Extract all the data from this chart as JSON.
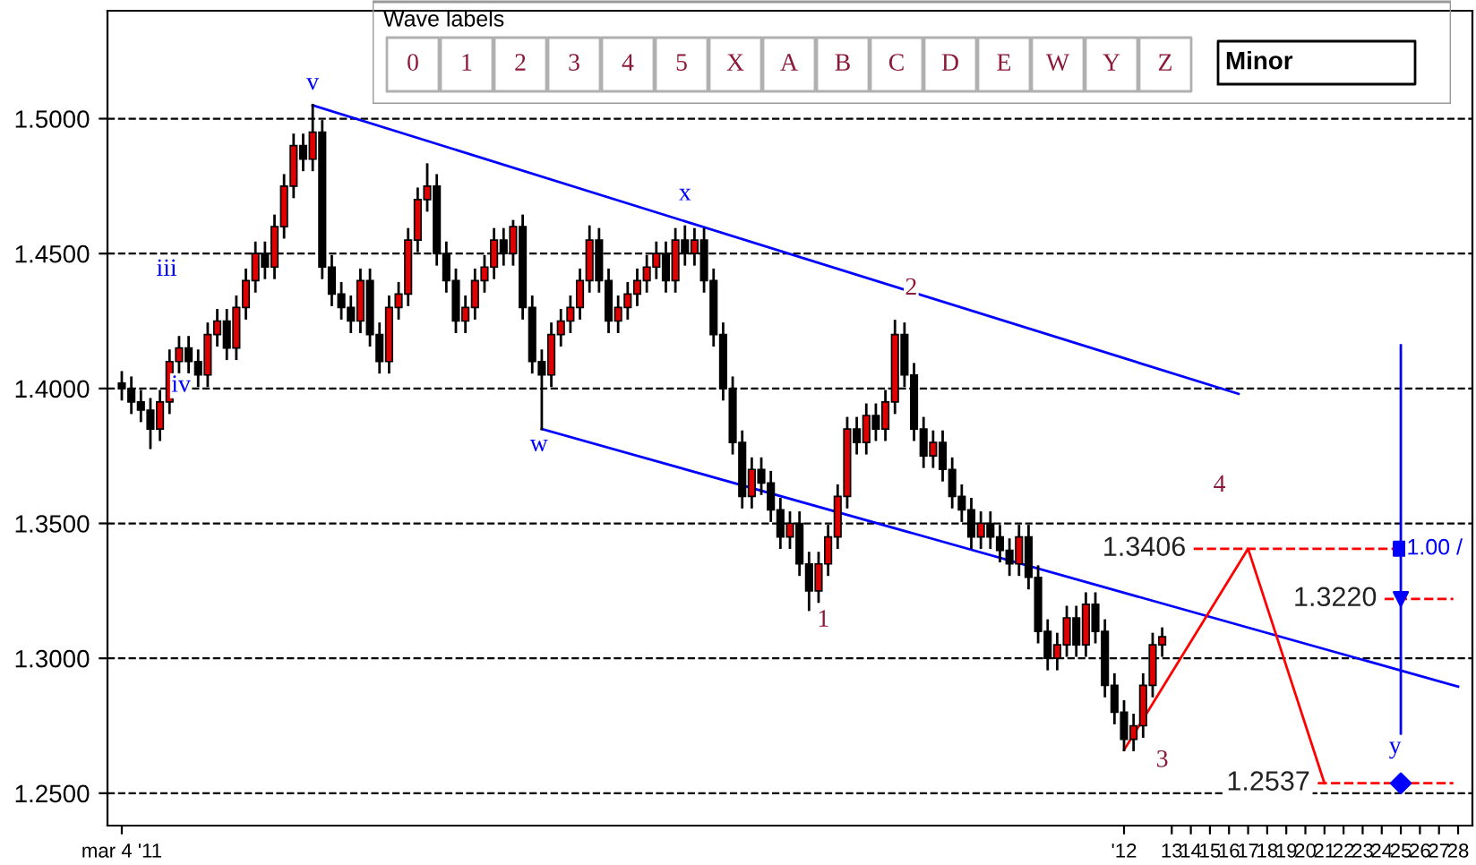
{
  "chart_data": {
    "type": "candlestick",
    "categories": [
      "mar 4 '11",
      null,
      null,
      null,
      null,
      null,
      null,
      null,
      null,
      null,
      null,
      null,
      null,
      null,
      null,
      null,
      null,
      null,
      null,
      null,
      null,
      null,
      null,
      null,
      null,
      null,
      null,
      null,
      null,
      null,
      null,
      null,
      null,
      null,
      null,
      null,
      null,
      null,
      null,
      null,
      null,
      null,
      null,
      null,
      null,
      null,
      null,
      null,
      null,
      null,
      null,
      null,
      null,
      null,
      null,
      null,
      null,
      null,
      null,
      null,
      null,
      null,
      null,
      null,
      null,
      null,
      null,
      null,
      null,
      null,
      null,
      null,
      null,
      null,
      null,
      null,
      null,
      null,
      null,
      null,
      null,
      null,
      null,
      null,
      null,
      null,
      null,
      null,
      null,
      null,
      null,
      null,
      null,
      null,
      null,
      null,
      null,
      null,
      null,
      null,
      null,
      null,
      null,
      null,
      null,
      "'12",
      null,
      null,
      null,
      null,
      "13",
      null,
      "14",
      null,
      "15",
      null,
      "16",
      null,
      "17",
      null,
      "18",
      null,
      "19",
      null,
      "20",
      null,
      "21",
      null,
      "22",
      null,
      "23",
      null,
      "24",
      null,
      "25",
      null,
      "26",
      null,
      "27",
      null,
      "28"
    ],
    "ohlc": [
      [
        1.402,
        1.406,
        1.396,
        1.4
      ],
      [
        1.4,
        1.404,
        1.391,
        1.395
      ],
      [
        1.395,
        1.399,
        1.388,
        1.392
      ],
      [
        1.392,
        1.396,
        1.378,
        1.385
      ],
      [
        1.385,
        1.399,
        1.381,
        1.395
      ],
      [
        1.395,
        1.414,
        1.391,
        1.41
      ],
      [
        1.41,
        1.419,
        1.406,
        1.415
      ],
      [
        1.415,
        1.419,
        1.406,
        1.41
      ],
      [
        1.41,
        1.414,
        1.401,
        1.405
      ],
      [
        1.405,
        1.424,
        1.401,
        1.42
      ],
      [
        1.42,
        1.429,
        1.416,
        1.425
      ],
      [
        1.425,
        1.429,
        1.411,
        1.415
      ],
      [
        1.415,
        1.434,
        1.411,
        1.43
      ],
      [
        1.43,
        1.444,
        1.426,
        1.44
      ],
      [
        1.44,
        1.454,
        1.436,
        1.45
      ],
      [
        1.45,
        1.454,
        1.441,
        1.445
      ],
      [
        1.445,
        1.464,
        1.441,
        1.46
      ],
      [
        1.46,
        1.479,
        1.456,
        1.475
      ],
      [
        1.475,
        1.494,
        1.471,
        1.49
      ],
      [
        1.49,
        1.494,
        1.481,
        1.485
      ],
      [
        1.485,
        1.505,
        1.481,
        1.495
      ],
      [
        1.495,
        1.499,
        1.441,
        1.445
      ],
      [
        1.445,
        1.449,
        1.431,
        1.435
      ],
      [
        1.435,
        1.439,
        1.426,
        1.43
      ],
      [
        1.43,
        1.434,
        1.421,
        1.425
      ],
      [
        1.425,
        1.444,
        1.421,
        1.44
      ],
      [
        1.44,
        1.444,
        1.416,
        1.42
      ],
      [
        1.42,
        1.424,
        1.406,
        1.41
      ],
      [
        1.41,
        1.434,
        1.406,
        1.43
      ],
      [
        1.43,
        1.439,
        1.426,
        1.435
      ],
      [
        1.435,
        1.459,
        1.431,
        1.455
      ],
      [
        1.455,
        1.474,
        1.451,
        1.47
      ],
      [
        1.47,
        1.483,
        1.466,
        1.475
      ],
      [
        1.475,
        1.479,
        1.446,
        1.45
      ],
      [
        1.45,
        1.454,
        1.436,
        1.44
      ],
      [
        1.44,
        1.444,
        1.421,
        1.425
      ],
      [
        1.425,
        1.434,
        1.421,
        1.43
      ],
      [
        1.43,
        1.444,
        1.426,
        1.44
      ],
      [
        1.44,
        1.449,
        1.436,
        1.445
      ],
      [
        1.445,
        1.459,
        1.441,
        1.455
      ],
      [
        1.455,
        1.459,
        1.446,
        1.45
      ],
      [
        1.45,
        1.462,
        1.446,
        1.46
      ],
      [
        1.46,
        1.464,
        1.426,
        1.43
      ],
      [
        1.43,
        1.434,
        1.406,
        1.41
      ],
      [
        1.41,
        1.414,
        1.385,
        1.405
      ],
      [
        1.405,
        1.424,
        1.401,
        1.42
      ],
      [
        1.42,
        1.429,
        1.416,
        1.425
      ],
      [
        1.425,
        1.434,
        1.421,
        1.43
      ],
      [
        1.43,
        1.444,
        1.426,
        1.44
      ],
      [
        1.44,
        1.46,
        1.436,
        1.455
      ],
      [
        1.455,
        1.459,
        1.436,
        1.44
      ],
      [
        1.44,
        1.444,
        1.421,
        1.425
      ],
      [
        1.425,
        1.434,
        1.421,
        1.43
      ],
      [
        1.43,
        1.439,
        1.426,
        1.435
      ],
      [
        1.435,
        1.444,
        1.431,
        1.44
      ],
      [
        1.44,
        1.449,
        1.436,
        1.445
      ],
      [
        1.445,
        1.454,
        1.441,
        1.45
      ],
      [
        1.45,
        1.454,
        1.436,
        1.44
      ],
      [
        1.44,
        1.459,
        1.436,
        1.455
      ],
      [
        1.455,
        1.46,
        1.446,
        1.45
      ],
      [
        1.45,
        1.459,
        1.446,
        1.455
      ],
      [
        1.455,
        1.459,
        1.436,
        1.44
      ],
      [
        1.44,
        1.444,
        1.416,
        1.42
      ],
      [
        1.42,
        1.424,
        1.396,
        1.4
      ],
      [
        1.4,
        1.404,
        1.376,
        1.38
      ],
      [
        1.38,
        1.384,
        1.356,
        1.36
      ],
      [
        1.36,
        1.374,
        1.356,
        1.37
      ],
      [
        1.37,
        1.374,
        1.361,
        1.365
      ],
      [
        1.365,
        1.369,
        1.351,
        1.355
      ],
      [
        1.355,
        1.359,
        1.341,
        1.345
      ],
      [
        1.345,
        1.354,
        1.341,
        1.35
      ],
      [
        1.35,
        1.354,
        1.331,
        1.335
      ],
      [
        1.335,
        1.339,
        1.318,
        1.325
      ],
      [
        1.325,
        1.339,
        1.321,
        1.335
      ],
      [
        1.335,
        1.349,
        1.331,
        1.345
      ],
      [
        1.345,
        1.364,
        1.341,
        1.36
      ],
      [
        1.36,
        1.389,
        1.356,
        1.385
      ],
      [
        1.385,
        1.389,
        1.376,
        1.38
      ],
      [
        1.38,
        1.394,
        1.376,
        1.39
      ],
      [
        1.39,
        1.394,
        1.381,
        1.385
      ],
      [
        1.385,
        1.399,
        1.381,
        1.395
      ],
      [
        1.395,
        1.425,
        1.391,
        1.42
      ],
      [
        1.42,
        1.424,
        1.401,
        1.405
      ],
      [
        1.405,
        1.409,
        1.381,
        1.385
      ],
      [
        1.385,
        1.389,
        1.371,
        1.375
      ],
      [
        1.375,
        1.384,
        1.371,
        1.38
      ],
      [
        1.38,
        1.384,
        1.366,
        1.37
      ],
      [
        1.37,
        1.374,
        1.356,
        1.36
      ],
      [
        1.36,
        1.364,
        1.351,
        1.355
      ],
      [
        1.355,
        1.359,
        1.341,
        1.345
      ],
      [
        1.345,
        1.354,
        1.341,
        1.35
      ],
      [
        1.35,
        1.354,
        1.341,
        1.345
      ],
      [
        1.345,
        1.349,
        1.336,
        1.34
      ],
      [
        1.34,
        1.344,
        1.331,
        1.335
      ],
      [
        1.335,
        1.349,
        1.331,
        1.345
      ],
      [
        1.345,
        1.349,
        1.326,
        1.33
      ],
      [
        1.33,
        1.334,
        1.306,
        1.31
      ],
      [
        1.31,
        1.314,
        1.296,
        1.3
      ],
      [
        1.3,
        1.309,
        1.296,
        1.305
      ],
      [
        1.305,
        1.319,
        1.301,
        1.315
      ],
      [
        1.315,
        1.319,
        1.301,
        1.305
      ],
      [
        1.305,
        1.324,
        1.301,
        1.32
      ],
      [
        1.32,
        1.324,
        1.306,
        1.31
      ],
      [
        1.31,
        1.314,
        1.286,
        1.29
      ],
      [
        1.29,
        1.294,
        1.276,
        1.28
      ],
      [
        1.28,
        1.284,
        1.266,
        1.27
      ],
      [
        1.27,
        1.279,
        1.266,
        1.275
      ],
      [
        1.275,
        1.294,
        1.271,
        1.29
      ],
      [
        1.29,
        1.309,
        1.286,
        1.305
      ],
      [
        1.305,
        1.311,
        1.301,
        1.308
      ],
      null,
      null,
      null,
      null,
      null,
      null,
      null,
      null,
      null,
      null,
      null,
      null,
      null,
      null,
      null,
      null,
      null,
      null,
      null,
      null,
      null,
      null,
      null,
      null,
      null,
      null,
      null,
      null,
      null,
      null,
      null
    ],
    "colors": [
      "#000000",
      "#000000",
      "#000000",
      "#000000",
      "#e00000",
      "#e00000",
      "#e00000",
      "#000000",
      "#000000",
      "#e00000",
      "#e00000",
      "#000000",
      "#e00000",
      "#e00000",
      "#e00000",
      "#000000",
      "#e00000",
      "#e00000",
      "#e00000",
      "#000000",
      "#e00000",
      "#000000",
      "#000000",
      "#000000",
      "#000000",
      "#e00000",
      "#000000",
      "#000000",
      "#e00000",
      "#e00000",
      "#e00000",
      "#e00000",
      "#e00000",
      "#000000",
      "#000000",
      "#000000",
      "#e00000",
      "#e00000",
      "#e00000",
      "#e00000",
      "#000000",
      "#e00000",
      "#000000",
      "#000000",
      "#000000",
      "#e00000",
      "#e00000",
      "#e00000",
      "#e00000",
      "#e00000",
      "#000000",
      "#000000",
      "#e00000",
      "#e00000",
      "#e00000",
      "#e00000",
      "#e00000",
      "#000000",
      "#e00000",
      "#000000",
      "#e00000",
      "#000000",
      "#000000",
      "#000000",
      "#000000",
      "#000000",
      "#e00000",
      "#000000",
      "#000000",
      "#000000",
      "#e00000",
      "#000000",
      "#000000",
      "#e00000",
      "#e00000",
      "#e00000",
      "#e00000",
      "#000000",
      "#e00000",
      "#000000",
      "#e00000",
      "#e00000",
      "#000000",
      "#000000",
      "#000000",
      "#e00000",
      "#000000",
      "#000000",
      "#000000",
      "#000000",
      "#e00000",
      "#000000",
      "#000000",
      "#000000",
      "#e00000",
      "#000000",
      "#000000",
      "#000000",
      "#e00000",
      "#e00000",
      "#000000",
      "#e00000",
      "#000000",
      "#000000",
      "#000000",
      "#000000",
      "#e00000",
      "#e00000",
      "#e00000",
      "#e00000",
      null,
      null,
      null,
      null,
      null,
      null,
      null,
      null,
      null,
      null,
      null,
      null,
      null,
      null,
      null,
      null,
      null,
      null,
      null,
      null,
      null,
      null,
      null,
      null,
      null,
      null,
      null,
      null,
      null,
      null,
      null
    ],
    "series": [
      {
        "type": "line",
        "color": "#0000ff",
        "values": [
          null,
          null,
          null,
          null,
          null,
          null,
          null,
          null,
          null,
          null,
          null,
          null,
          null,
          null,
          null,
          null,
          null,
          null,
          null,
          null,
          1.505,
          null,
          null,
          null,
          null,
          null,
          null,
          null,
          null,
          null,
          null,
          null,
          null,
          null,
          null,
          null,
          null,
          null,
          null,
          null,
          null,
          null,
          null,
          null,
          null,
          null,
          null,
          null,
          null,
          null,
          null,
          null,
          null,
          null,
          null,
          null,
          null,
          null,
          null,
          null,
          null,
          null,
          null,
          null,
          null,
          null,
          null,
          null,
          null,
          null,
          null,
          null,
          null,
          null,
          null,
          null,
          null,
          null,
          null,
          null,
          null,
          null,
          null,
          null,
          null,
          null,
          null,
          null,
          null,
          null,
          null,
          null,
          null,
          null,
          null,
          null,
          null,
          null,
          null,
          null,
          null,
          null,
          null,
          null,
          null,
          null,
          null,
          null,
          null,
          null,
          null,
          null,
          null,
          null,
          null,
          null,
          null,
          1.398,
          null,
          null,
          null,
          null,
          null,
          null,
          null,
          null,
          null,
          null,
          null,
          null,
          null,
          null,
          null,
          null,
          null,
          null,
          null,
          null,
          null,
          null,
          null
        ]
      },
      {
        "type": "line",
        "color": "#0000ff",
        "values": [
          null,
          null,
          null,
          null,
          null,
          null,
          null,
          null,
          null,
          null,
          null,
          null,
          null,
          null,
          null,
          null,
          null,
          null,
          null,
          null,
          null,
          null,
          null,
          null,
          null,
          null,
          null,
          null,
          null,
          null,
          null,
          null,
          null,
          null,
          null,
          null,
          null,
          null,
          null,
          null,
          null,
          null,
          null,
          null,
          1.385,
          null,
          null,
          null,
          null,
          null,
          null,
          null,
          null,
          null,
          null,
          null,
          null,
          null,
          null,
          null,
          null,
          null,
          null,
          null,
          null,
          null,
          null,
          null,
          null,
          null,
          null,
          null,
          null,
          null,
          null,
          null,
          null,
          null,
          null,
          null,
          null,
          null,
          null,
          null,
          null,
          null,
          null,
          null,
          null,
          null,
          null,
          null,
          null,
          null,
          null,
          null,
          null,
          null,
          null,
          null,
          null,
          null,
          null,
          null,
          null,
          null,
          null,
          null,
          null,
          null,
          null,
          null,
          null,
          null,
          null,
          null,
          null,
          null,
          null,
          null,
          null,
          null,
          null,
          null,
          null,
          null,
          null,
          null,
          null,
          null,
          null,
          null,
          null,
          null,
          null,
          null,
          null,
          null,
          null,
          null,
          1.2895
        ]
      },
      {
        "type": "line",
        "color": "#ff0000",
        "values": [
          null,
          null,
          null,
          null,
          null,
          null,
          null,
          null,
          null,
          null,
          null,
          null,
          null,
          null,
          null,
          null,
          null,
          null,
          null,
          null,
          null,
          null,
          null,
          null,
          null,
          null,
          null,
          null,
          null,
          null,
          null,
          null,
          null,
          null,
          null,
          null,
          null,
          null,
          null,
          null,
          null,
          null,
          null,
          null,
          null,
          null,
          null,
          null,
          null,
          null,
          null,
          null,
          null,
          null,
          null,
          null,
          null,
          null,
          null,
          null,
          null,
          null,
          null,
          null,
          null,
          null,
          null,
          null,
          null,
          null,
          null,
          null,
          null,
          null,
          null,
          null,
          null,
          null,
          null,
          null,
          null,
          null,
          null,
          null,
          null,
          null,
          null,
          null,
          null,
          null,
          null,
          null,
          null,
          null,
          null,
          null,
          null,
          null,
          null,
          null,
          null,
          null,
          null,
          null,
          null,
          1.266,
          null,
          null,
          null,
          null,
          null,
          null,
          null,
          null,
          null,
          null,
          null,
          null,
          1.3406,
          null,
          null,
          null,
          null,
          null,
          null,
          null,
          1.2537,
          null,
          null,
          null,
          null,
          null,
          null,
          null,
          null,
          null,
          null,
          null,
          null,
          null,
          null
        ]
      },
      {
        "type": "scatter",
        "color": "#0000ff",
        "marker": "square",
        "values": [
          null,
          null,
          null,
          null,
          null,
          null,
          null,
          null,
          null,
          null,
          null,
          null,
          null,
          null,
          null,
          null,
          null,
          null,
          null,
          null,
          null,
          null,
          null,
          null,
          null,
          null,
          null,
          null,
          null,
          null,
          null,
          null,
          null,
          null,
          null,
          null,
          null,
          null,
          null,
          null,
          null,
          null,
          null,
          null,
          null,
          null,
          null,
          null,
          null,
          null,
          null,
          null,
          null,
          null,
          null,
          null,
          null,
          null,
          null,
          null,
          null,
          null,
          null,
          null,
          null,
          null,
          null,
          null,
          null,
          null,
          null,
          null,
          null,
          null,
          null,
          null,
          null,
          null,
          null,
          null,
          null,
          null,
          null,
          null,
          null,
          null,
          null,
          null,
          null,
          null,
          null,
          null,
          null,
          null,
          null,
          null,
          null,
          null,
          null,
          null,
          null,
          null,
          null,
          null,
          null,
          null,
          null,
          null,
          null,
          null,
          null,
          null,
          null,
          null,
          null,
          null,
          null,
          null,
          null,
          null,
          null,
          null,
          null,
          null,
          null,
          null,
          null,
          null,
          null,
          null,
          null,
          null,
          null,
          null,
          1.3406,
          null,
          null,
          null,
          null,
          null,
          null
        ],
        "errors": [
          null,
          null,
          null,
          null,
          null,
          null,
          null,
          null,
          null,
          null,
          null,
          null,
          null,
          null,
          null,
          null,
          null,
          null,
          null,
          null,
          null,
          null,
          null,
          null,
          null,
          null,
          null,
          null,
          null,
          null,
          null,
          null,
          null,
          null,
          null,
          null,
          null,
          null,
          null,
          null,
          null,
          null,
          null,
          null,
          null,
          null,
          null,
          null,
          null,
          null,
          null,
          null,
          null,
          null,
          null,
          null,
          null,
          null,
          null,
          null,
          null,
          null,
          null,
          null,
          null,
          null,
          null,
          null,
          null,
          null,
          null,
          null,
          null,
          null,
          null,
          null,
          null,
          null,
          null,
          null,
          null,
          null,
          null,
          null,
          null,
          null,
          null,
          null,
          null,
          null,
          null,
          null,
          null,
          null,
          null,
          null,
          null,
          null,
          null,
          null,
          null,
          null,
          null,
          null,
          null,
          null,
          null,
          null,
          null,
          null,
          null,
          null,
          null,
          null,
          null,
          null,
          null,
          null,
          null,
          null,
          null,
          null,
          null,
          null,
          null,
          null,
          null,
          null,
          null,
          null,
          null,
          null,
          null,
          null,
          [
            1.268,
            1.416
          ],
          null,
          null,
          null,
          null,
          null,
          null
        ]
      },
      {
        "type": "scatter",
        "color": "#0000ff",
        "marker": "triangle",
        "values": [
          null,
          null,
          null,
          null,
          null,
          null,
          null,
          null,
          null,
          null,
          null,
          null,
          null,
          null,
          null,
          null,
          null,
          null,
          null,
          null,
          null,
          null,
          null,
          null,
          null,
          null,
          null,
          null,
          null,
          null,
          null,
          null,
          null,
          null,
          null,
          null,
          null,
          null,
          null,
          null,
          null,
          null,
          null,
          null,
          null,
          null,
          null,
          null,
          null,
          null,
          null,
          null,
          null,
          null,
          null,
          null,
          null,
          null,
          null,
          null,
          null,
          null,
          null,
          null,
          null,
          null,
          null,
          null,
          null,
          null,
          null,
          null,
          null,
          null,
          null,
          null,
          null,
          null,
          null,
          null,
          null,
          null,
          null,
          null,
          null,
          null,
          null,
          null,
          null,
          null,
          null,
          null,
          null,
          null,
          null,
          null,
          null,
          null,
          null,
          null,
          null,
          null,
          null,
          null,
          null,
          null,
          null,
          null,
          null,
          null,
          null,
          null,
          null,
          null,
          null,
          null,
          null,
          null,
          null,
          null,
          null,
          null,
          null,
          null,
          null,
          null,
          null,
          null,
          null,
          null,
          null,
          null,
          null,
          null,
          1.322,
          null,
          null,
          null,
          null,
          null,
          null
        ]
      },
      {
        "type": "scatter",
        "color": "#0000ff",
        "marker": "diamond",
        "values": [
          null,
          null,
          null,
          null,
          null,
          null,
          null,
          null,
          null,
          null,
          null,
          null,
          null,
          null,
          null,
          null,
          null,
          null,
          null,
          null,
          null,
          null,
          null,
          null,
          null,
          null,
          null,
          null,
          null,
          null,
          null,
          null,
          null,
          null,
          null,
          null,
          null,
          null,
          null,
          null,
          null,
          null,
          null,
          null,
          null,
          null,
          null,
          null,
          null,
          null,
          null,
          null,
          null,
          null,
          null,
          null,
          null,
          null,
          null,
          null,
          null,
          null,
          null,
          null,
          null,
          null,
          null,
          null,
          null,
          null,
          null,
          null,
          null,
          null,
          null,
          null,
          null,
          null,
          null,
          null,
          null,
          null,
          null,
          null,
          null,
          null,
          null,
          null,
          null,
          null,
          null,
          null,
          null,
          null,
          null,
          null,
          null,
          null,
          null,
          null,
          null,
          null,
          null,
          null,
          null,
          null,
          null,
          null,
          null,
          null,
          null,
          null,
          null,
          null,
          null,
          null,
          null,
          null,
          null,
          null,
          null,
          null,
          null,
          null,
          null,
          null,
          null,
          null,
          null,
          null,
          null,
          null,
          null,
          null,
          1.2537,
          null,
          null,
          null,
          null,
          null,
          null
        ]
      }
    ],
    "ref_lines": [
      {
        "axis": "y",
        "value": 1.3406,
        "label": "1.3406",
        "color": "#ff0000",
        "line_style": "dashed"
      },
      {
        "axis": "y",
        "value": 1.322,
        "label": "1.3220",
        "color": "#ff0000",
        "line_style": "dashed"
      },
      {
        "axis": "y",
        "value": 1.2537,
        "label": "1.2537",
        "color": "#ff0000",
        "line_style": "dashed"
      }
    ],
    "annotations": [
      "v",
      "iii",
      "iv",
      "w",
      "x",
      "y",
      "1",
      "2",
      {
        "text": "3",
        "y": 1.262
      },
      "4",
      "1.00 /",
      "Wave labels",
      "0",
      "1",
      "2",
      "3",
      "4",
      "5",
      "X",
      "A",
      "B",
      "C",
      "D",
      "E",
      "W",
      "Y",
      "Z",
      "Minor"
    ],
    "ylim": [
      1.238,
      1.54
    ],
    "yticks": [
      {
        "value": 1.25,
        "label": "1.2500"
      },
      {
        "value": 1.3,
        "label": "1.3000"
      },
      {
        "value": 1.35,
        "label": "1.3500"
      },
      {
        "value": 1.4,
        "label": "1.4000"
      },
      {
        "value": 1.45,
        "label": "1.4500"
      },
      {
        "value": 1.5,
        "label": "1.5000"
      }
    ],
    "grid": "y",
    "legend": false
  }
}
